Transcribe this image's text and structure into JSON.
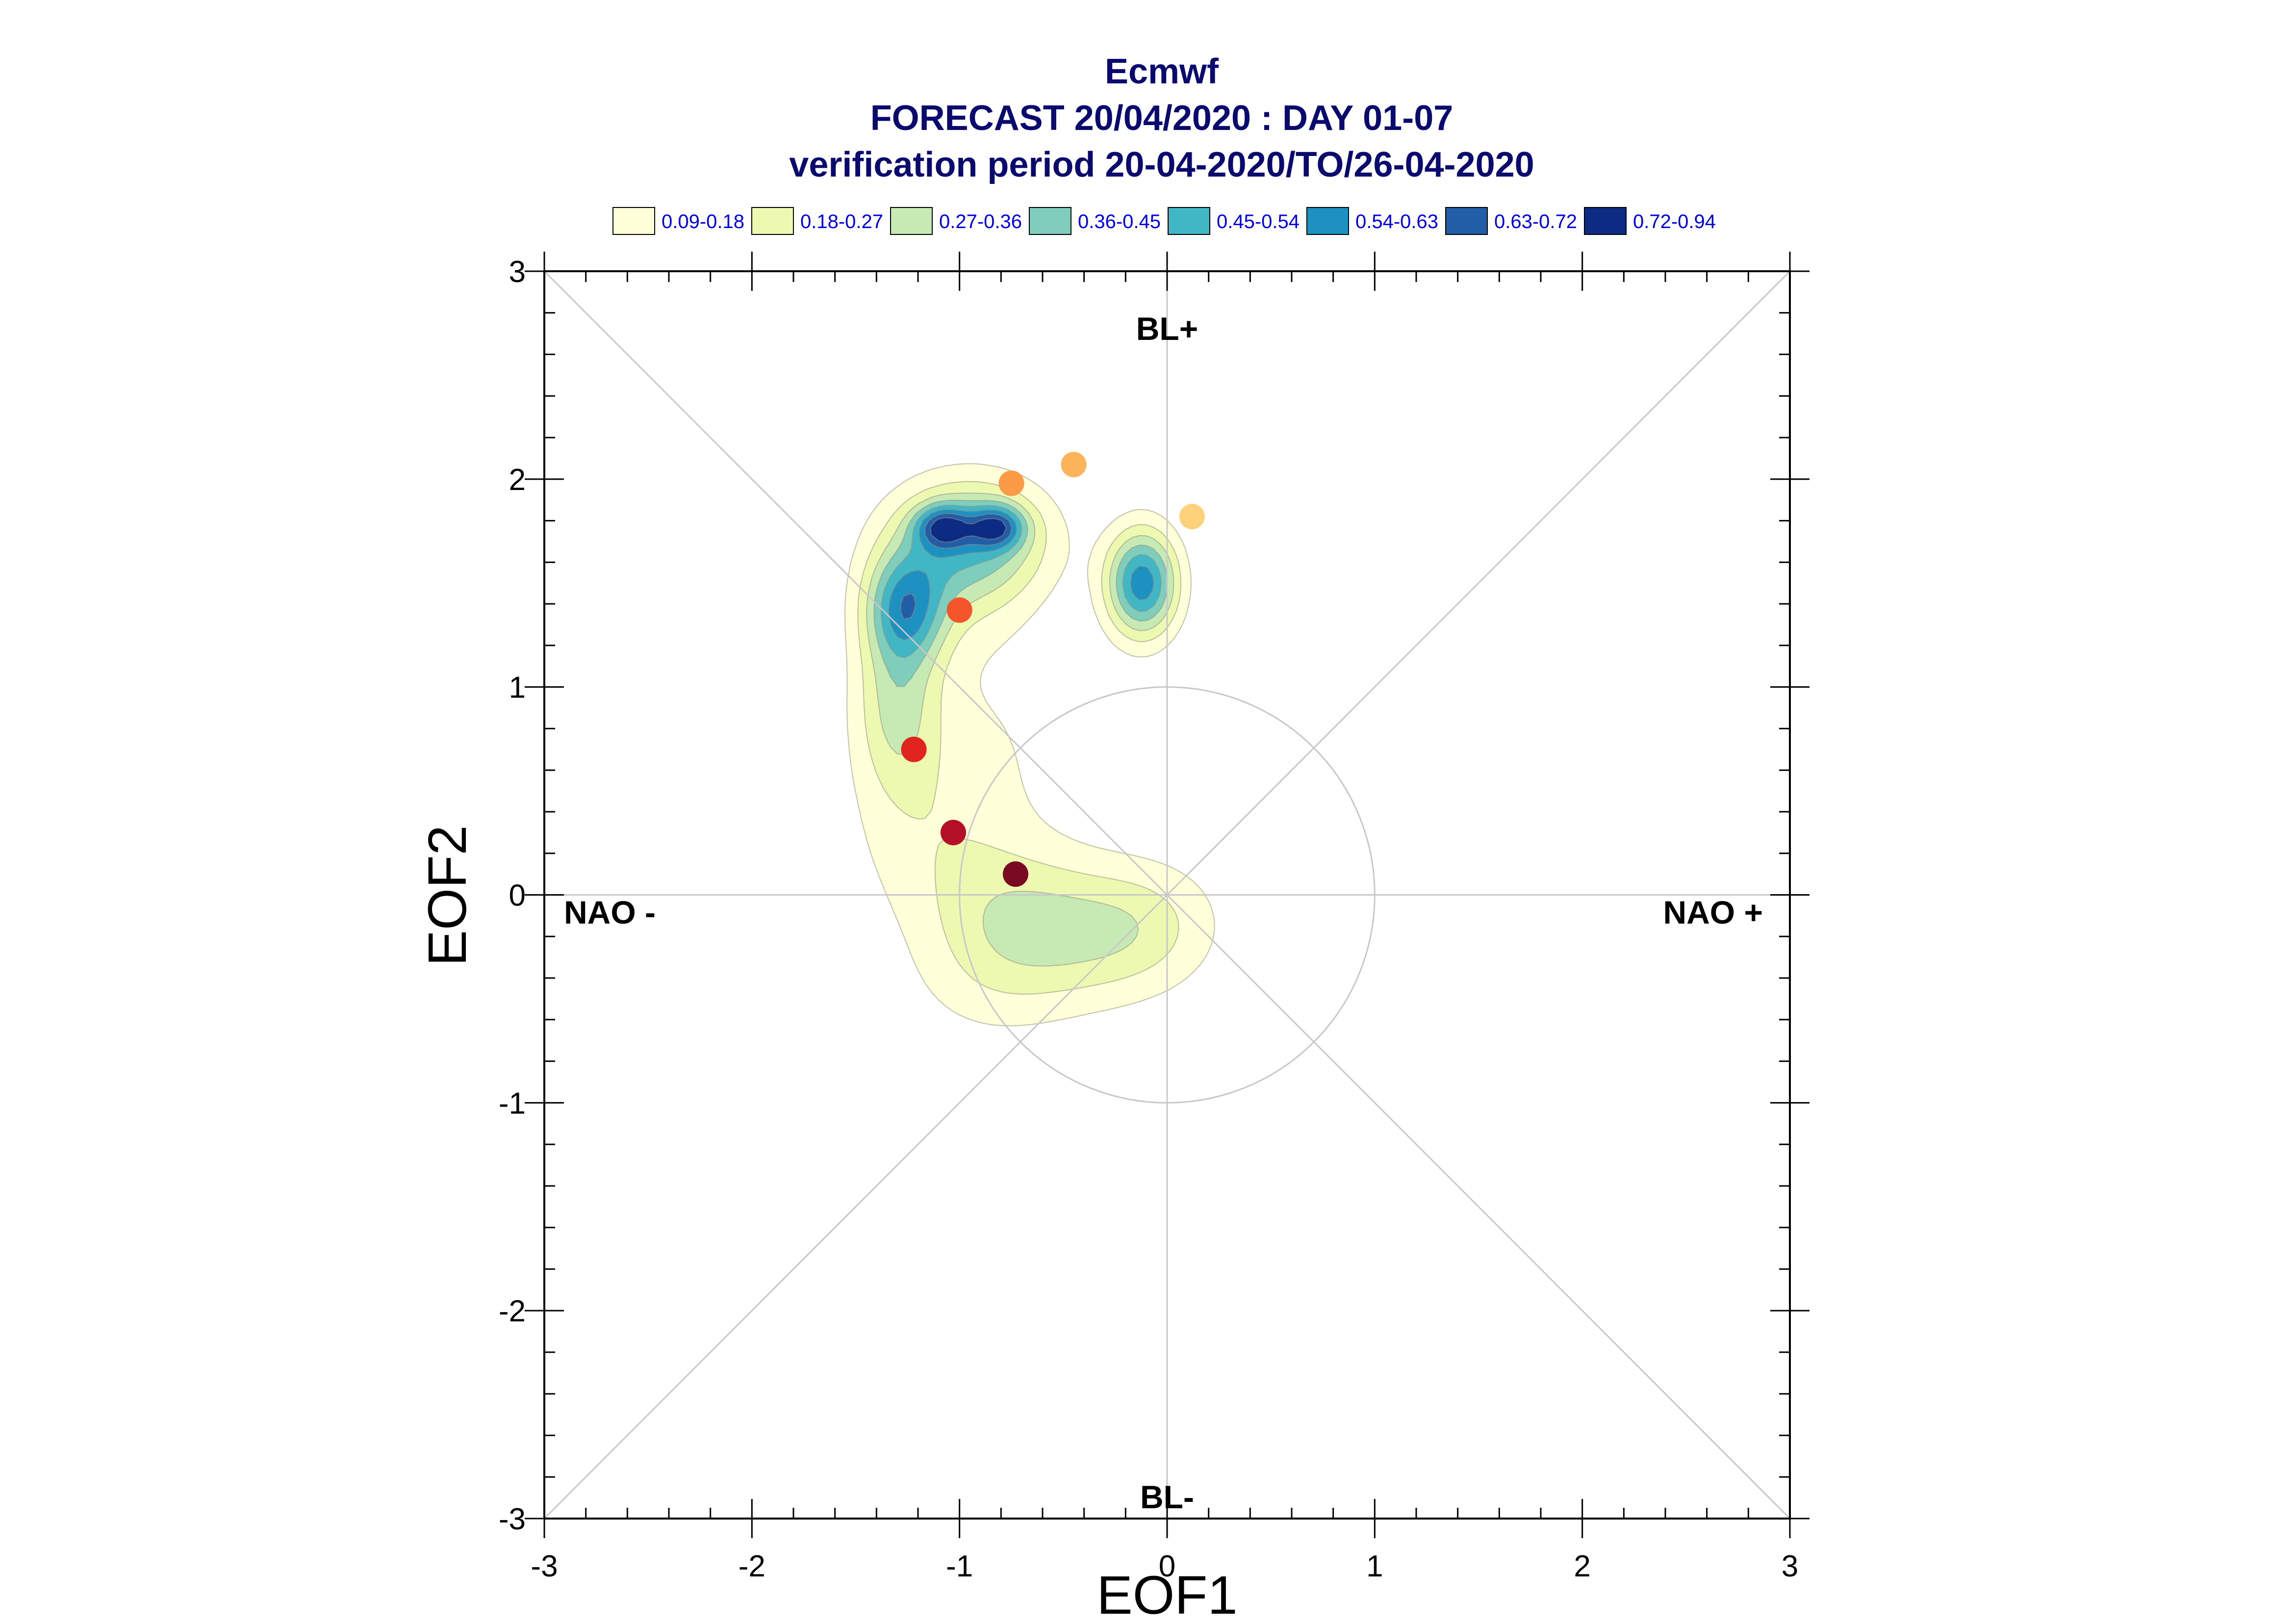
{
  "chart_data": {
    "type": "scatter",
    "title_lines": [
      "Ecmwf",
      "FORECAST 20/04/2020 : DAY 01-07",
      "verification period 20-04-2020/TO/26-04-2020"
    ],
    "xlabel": "EOF1",
    "ylabel": "EOF2",
    "xlim": [
      -3,
      3
    ],
    "ylim": [
      -3,
      3
    ],
    "x_ticks": [
      -3,
      -2,
      -1,
      0,
      1,
      2,
      3
    ],
    "y_ticks": [
      -3,
      -2,
      -1,
      0,
      1,
      2,
      3
    ],
    "x_tick_labels": [
      "-3",
      "-2",
      "-1",
      "0",
      "1",
      "2",
      "3"
    ],
    "y_tick_labels": [
      "-3",
      "-2",
      "-1",
      "0",
      "1",
      "2",
      "3"
    ],
    "grid": "diagonals, zero lines and unit circle",
    "unit_circle_radius": 1,
    "regime_labels": {
      "top": "BL+",
      "bottom": "BL-",
      "left": "NAO -",
      "right": "NAO +"
    },
    "legend": {
      "placement": "top",
      "entries": [
        {
          "label": "0.09-0.18",
          "color": "#ffffd9"
        },
        {
          "label": "0.18-0.27",
          "color": "#edf8b1"
        },
        {
          "label": "0.27-0.36",
          "color": "#c7e9b4"
        },
        {
          "label": "0.36-0.45",
          "color": "#7fcdbb"
        },
        {
          "label": "0.45-0.54",
          "color": "#41b6c4"
        },
        {
          "label": "0.54-0.63",
          "color": "#1d91c0"
        },
        {
          "label": "0.63-0.72",
          "color": "#225ea8"
        },
        {
          "label": "0.72-0.94",
          "color": "#0c2c84"
        }
      ]
    },
    "density_components": [
      {
        "x": -1.08,
        "y": 1.77,
        "sx": 0.09,
        "sy": 0.07,
        "w": 0.42
      },
      {
        "x": -0.82,
        "y": 1.77,
        "sx": 0.09,
        "sy": 0.07,
        "w": 0.42
      },
      {
        "x": -0.95,
        "y": 1.72,
        "sx": 0.26,
        "sy": 0.2,
        "w": 0.42
      },
      {
        "x": -1.26,
        "y": 1.38,
        "sx": 0.13,
        "sy": 0.18,
        "w": 0.4
      },
      {
        "x": -1.3,
        "y": 0.95,
        "sx": 0.14,
        "sy": 0.32,
        "w": 0.26
      },
      {
        "x": -1.05,
        "y": 1.45,
        "sx": 0.28,
        "sy": 0.22,
        "w": 0.12
      },
      {
        "x": -0.12,
        "y": 1.5,
        "sx": 0.12,
        "sy": 0.18,
        "w": 0.6
      },
      {
        "x": -0.97,
        "y": 0.75,
        "sx": 0.38,
        "sy": 0.35,
        "w": 0.09
      },
      {
        "x": -1.1,
        "y": 0.22,
        "sx": 0.3,
        "sy": 0.3,
        "w": 0.11
      },
      {
        "x": -0.72,
        "y": -0.12,
        "sx": 0.3,
        "sy": 0.25,
        "w": 0.2
      },
      {
        "x": -0.3,
        "y": -0.2,
        "sx": 0.3,
        "sy": 0.23,
        "w": 0.17
      },
      {
        "x": -0.05,
        "y": -0.12,
        "sx": 0.25,
        "sy": 0.22,
        "w": 0.1
      },
      {
        "x": -0.85,
        "y": -0.45,
        "sx": 0.3,
        "sy": 0.22,
        "w": 0.08
      }
    ],
    "points": [
      {
        "x": -0.45,
        "y": 2.07,
        "color": "#fdb45a"
      },
      {
        "x": 0.12,
        "y": 1.82,
        "color": "#fed27a"
      },
      {
        "x": -0.75,
        "y": 1.98,
        "color": "#fc9a47"
      },
      {
        "x": -1.0,
        "y": 1.37,
        "color": "#f4552a"
      },
      {
        "x": -1.22,
        "y": 0.7,
        "color": "#e0251f"
      },
      {
        "x": -1.03,
        "y": 0.3,
        "color": "#b30f26"
      },
      {
        "x": -0.73,
        "y": 0.1,
        "color": "#7a0a24"
      }
    ]
  }
}
